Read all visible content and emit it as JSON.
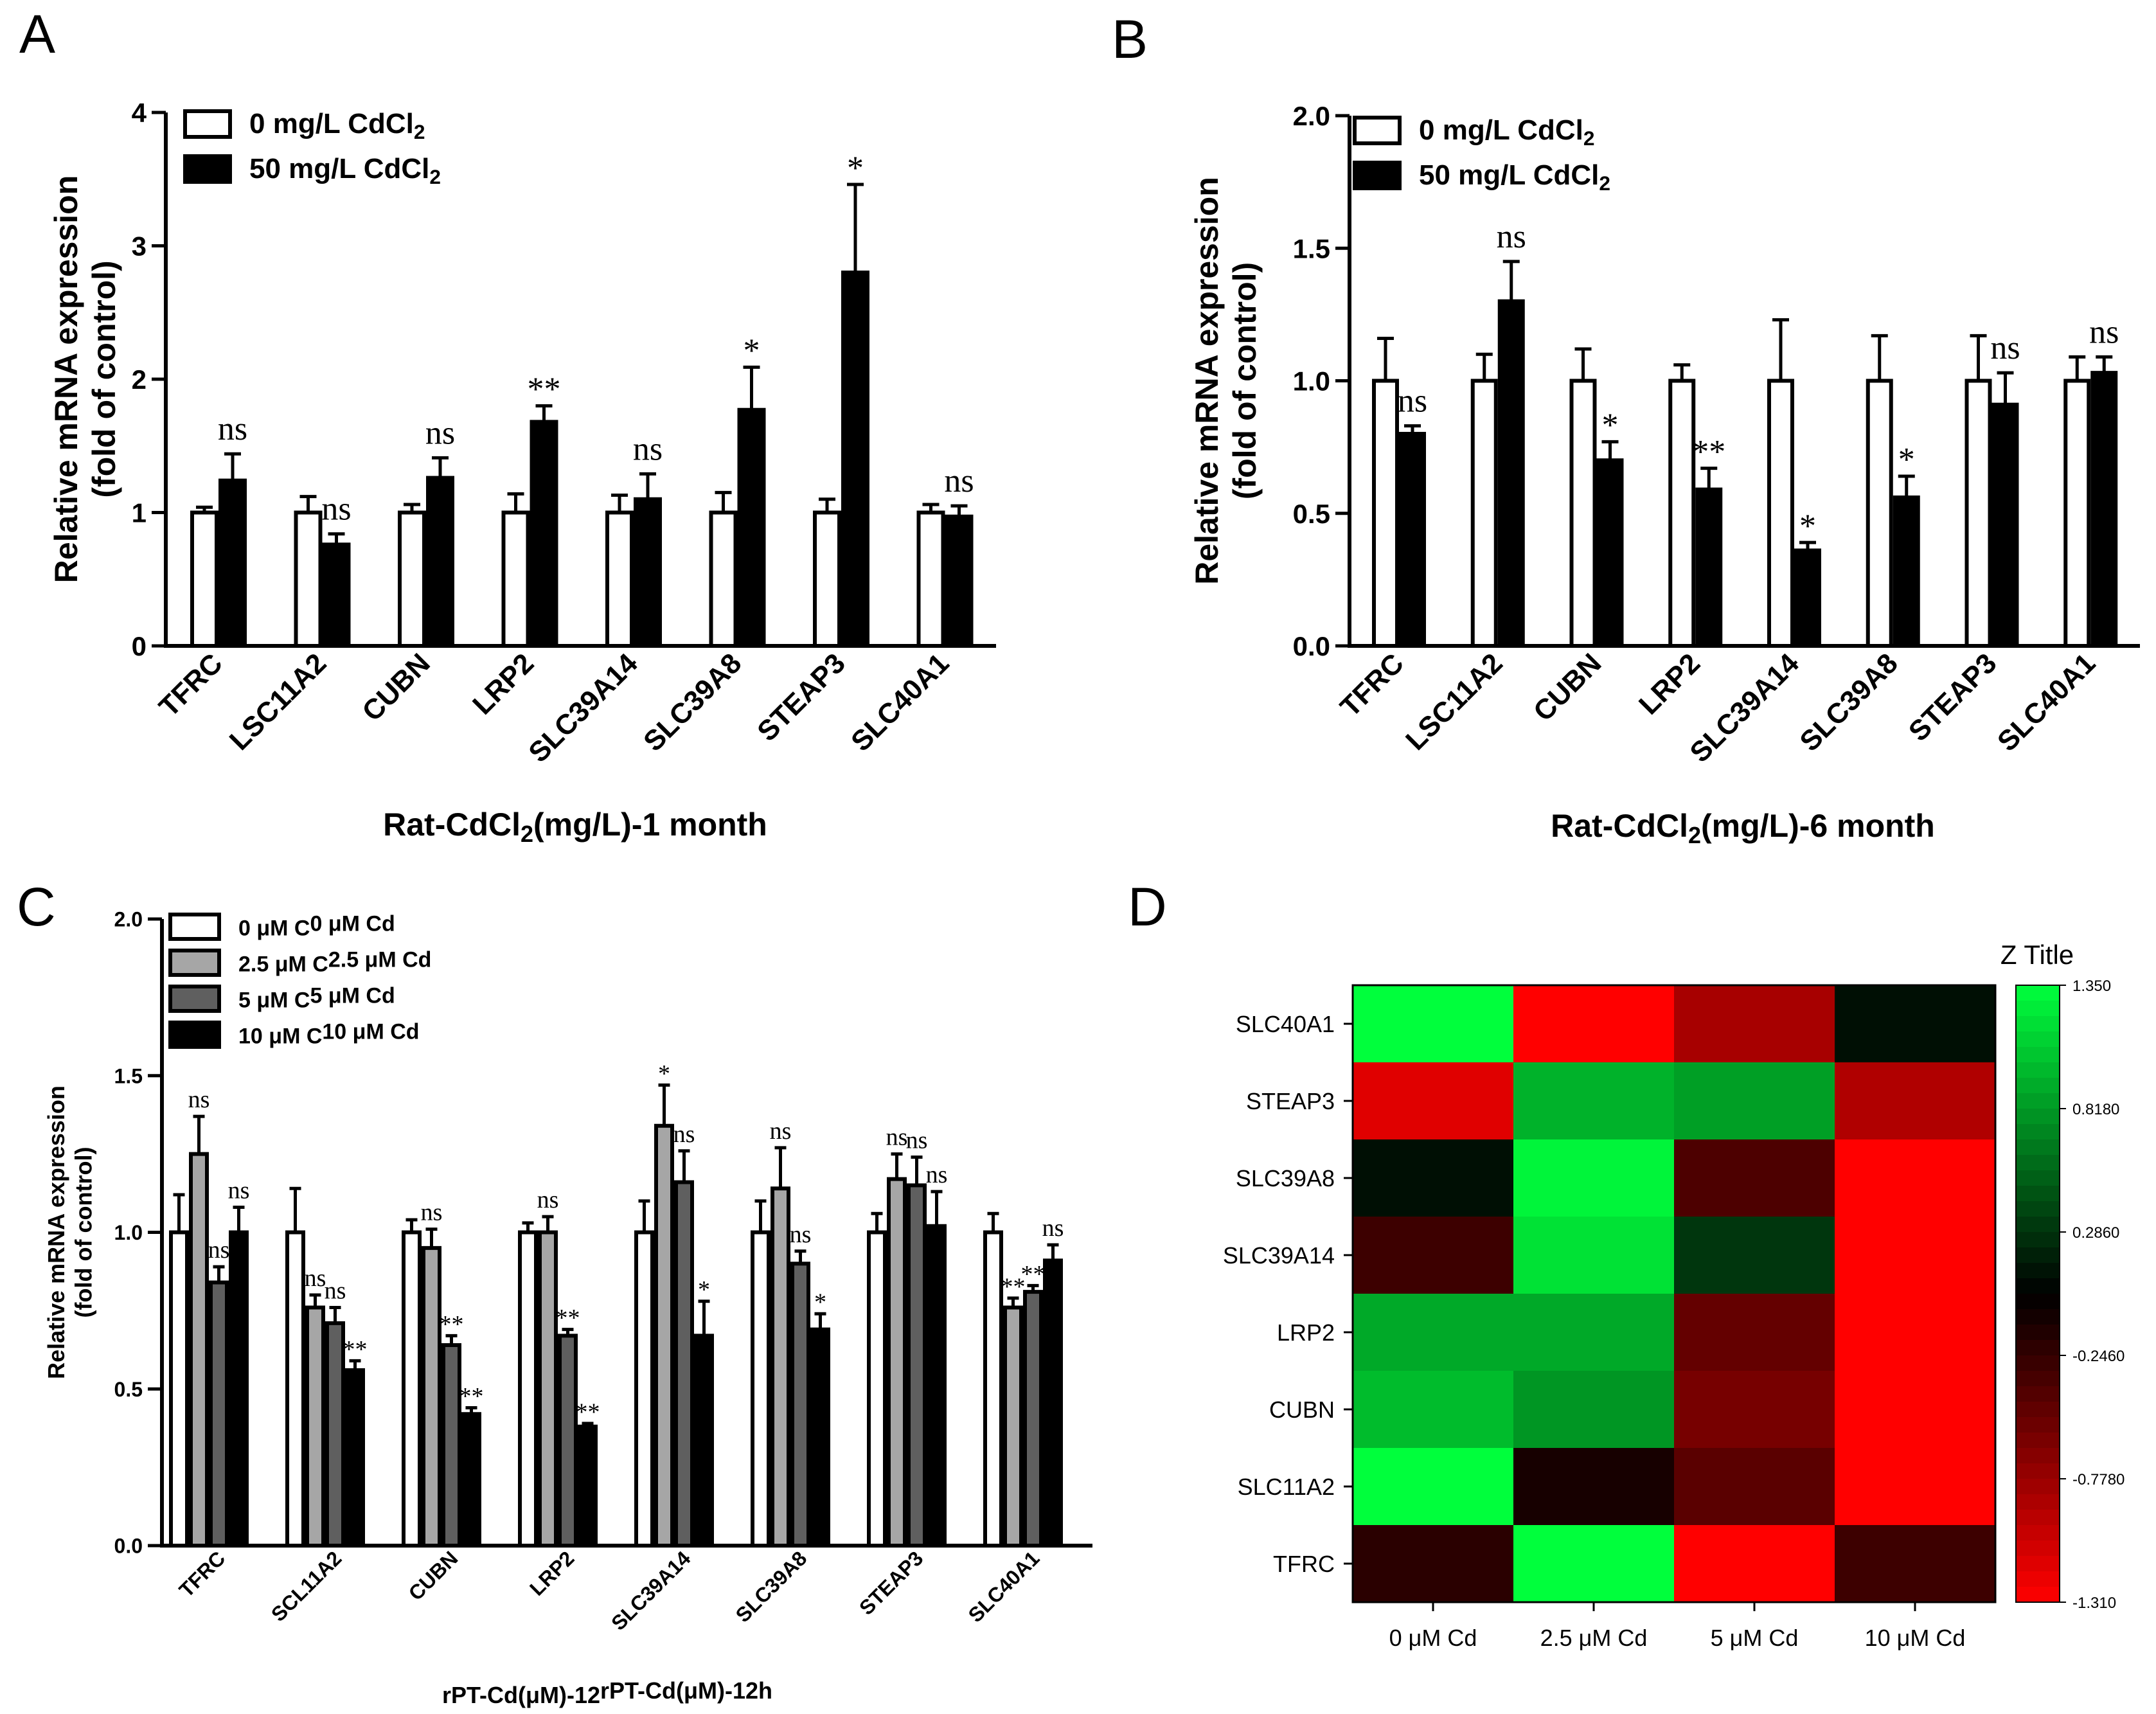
{
  "chart_data": [
    {
      "panel": "A",
      "type": "bar",
      "xlabel": "Rat-CdCl2(mg/L)-1 month",
      "ylabel": [
        "Relative mRNA expression",
        "(fold of control)"
      ],
      "ylim": [
        0,
        4
      ],
      "yticks": [
        "0",
        "1",
        "2",
        "3",
        "4"
      ],
      "categories": [
        "TFRC",
        "LSC11A2",
        "CUBN",
        "LRP2",
        "SLC39A14",
        "SLC39A8",
        "STEAP3",
        "SLC40A1"
      ],
      "series": [
        {
          "name": "0 mg/L CdCl2",
          "color": "#ffffff",
          "values": [
            1.0,
            1.0,
            1.0,
            1.0,
            1.0,
            1.0,
            1.0,
            1.0
          ],
          "errors": [
            0.04,
            0.12,
            0.06,
            0.14,
            0.13,
            0.15,
            0.1,
            0.06
          ]
        },
        {
          "name": "50 mg/L CdCl2",
          "color": "#000000",
          "values": [
            1.24,
            0.76,
            1.26,
            1.68,
            1.1,
            1.77,
            2.8,
            0.97
          ],
          "errors": [
            0.2,
            0.08,
            0.15,
            0.12,
            0.19,
            0.32,
            0.66,
            0.08
          ]
        }
      ],
      "annotations": [
        "ns",
        "ns",
        "ns",
        "**",
        "ns",
        "*",
        "*",
        "ns"
      ],
      "legend": "top-left"
    },
    {
      "panel": "B",
      "type": "bar",
      "xlabel": "Rat-CdCl2(mg/L)-6 month",
      "ylabel": [
        "Relative mRNA expression",
        "(fold of control)"
      ],
      "ylim": [
        0,
        2
      ],
      "yticks": [
        "0.0",
        "0.5",
        "1.0",
        "1.5",
        "2.0"
      ],
      "categories": [
        "TFRC",
        "LSC11A2",
        "CUBN",
        "LRP2",
        "SLC39A14",
        "SLC39A8",
        "STEAP3",
        "SLC40A1"
      ],
      "series": [
        {
          "name": "0 mg/L CdCl2",
          "color": "#ffffff",
          "values": [
            1.0,
            1.0,
            1.0,
            1.0,
            1.0,
            1.0,
            1.0,
            1.0
          ],
          "errors": [
            0.16,
            0.1,
            0.12,
            0.06,
            0.23,
            0.17,
            0.17,
            0.09
          ]
        },
        {
          "name": "50 mg/L CdCl2",
          "color": "#000000",
          "values": [
            0.8,
            1.3,
            0.7,
            0.59,
            0.36,
            0.56,
            0.91,
            1.03
          ],
          "errors": [
            0.03,
            0.15,
            0.07,
            0.08,
            0.03,
            0.08,
            0.12,
            0.06
          ]
        }
      ],
      "annotations": [
        "ns",
        "ns",
        "*",
        "**",
        "*",
        "*",
        "ns",
        "ns"
      ],
      "legend": "top-left"
    },
    {
      "panel": "C",
      "type": "bar",
      "xlabel": "rPT-Cd(μM)-12h",
      "ylabel": [
        "Relative mRNA expression",
        "(fold of control)"
      ],
      "ylim": [
        0,
        2
      ],
      "yticks": [
        "0.0",
        "0.5",
        "1.0",
        "1.5",
        "2.0"
      ],
      "categories": [
        "TFRC",
        "SCL11A2",
        "CUBN",
        "LRP2",
        "SLC39A14",
        "SLC39A8",
        "STEAP3",
        "SLC40A1"
      ],
      "series": [
        {
          "name": "0 μM Cd",
          "color": "#ffffff",
          "values": [
            1.0,
            1.0,
            1.0,
            1.0,
            1.0,
            1.0,
            1.0,
            1.0
          ],
          "errors": [
            0.12,
            0.14,
            0.04,
            0.03,
            0.1,
            0.1,
            0.06,
            0.06
          ],
          "annotations": [
            "",
            "",
            "",
            "",
            "",
            "",
            "",
            ""
          ]
        },
        {
          "name": "2.5 μM Cd",
          "color": "#a6a6a6",
          "values": [
            1.25,
            0.76,
            0.95,
            1.0,
            1.34,
            1.14,
            1.17,
            0.76
          ],
          "errors": [
            0.12,
            0.04,
            0.06,
            0.05,
            0.13,
            0.13,
            0.08,
            0.03
          ],
          "annotations": [
            "ns",
            "ns",
            "ns",
            "ns",
            "*",
            "ns",
            "ns",
            "**"
          ]
        },
        {
          "name": "5 μM Cd",
          "color": "#5f5f5f",
          "values": [
            0.84,
            0.71,
            0.64,
            0.67,
            1.16,
            0.9,
            1.15,
            0.81
          ],
          "errors": [
            0.05,
            0.05,
            0.03,
            0.02,
            0.1,
            0.04,
            0.09,
            0.02
          ],
          "annotations": [
            "ns",
            "ns",
            "**",
            "**",
            "ns",
            "ns",
            "ns",
            "**"
          ]
        },
        {
          "name": "10 μM Cd",
          "color": "#000000",
          "values": [
            1.0,
            0.56,
            0.42,
            0.38,
            0.67,
            0.69,
            1.02,
            0.91
          ],
          "errors": [
            0.08,
            0.03,
            0.02,
            0.01,
            0.11,
            0.05,
            0.11,
            0.05
          ],
          "annotations": [
            "ns",
            "**",
            "**",
            "**",
            "*",
            "*",
            "ns",
            "ns"
          ]
        }
      ],
      "legend": "top-left"
    },
    {
      "panel": "D",
      "type": "heatmap",
      "z_title": "Z Title",
      "columns": [
        "0 μM Cd",
        "2.5 μM Cd",
        "5 μM Cd",
        "10 μM Cd"
      ],
      "rows": [
        "SLC40A1",
        "STEAP3",
        "SLC39A8",
        "SLC39A14",
        "LRP2",
        "CUBN",
        "SLC11A2",
        "TFRC"
      ],
      "values": [
        [
          1.35,
          -1.31,
          -0.85,
          0.1
        ],
        [
          -1.15,
          0.95,
          0.85,
          -0.9
        ],
        [
          0.1,
          1.3,
          -0.38,
          -1.31
        ],
        [
          -0.3,
          1.2,
          0.3,
          -1.31
        ],
        [
          0.9,
          0.9,
          -0.5,
          -1.31
        ],
        [
          1.0,
          0.8,
          -0.6,
          -1.31
        ],
        [
          1.35,
          -0.1,
          -0.45,
          -1.31
        ],
        [
          -0.2,
          1.35,
          -1.31,
          -0.3
        ]
      ],
      "zlim": [
        -1.31,
        1.35
      ],
      "colorbar_ticks": [
        "1.350",
        "0.8180",
        "0.2860",
        "-0.2460",
        "-0.7780",
        "-1.310"
      ],
      "colors": {
        "low": "#ff0000",
        "mid": "#000000",
        "high": "#00ff3c"
      }
    }
  ],
  "panels": {
    "A": "A",
    "B": "B",
    "C": "C",
    "D": "D"
  }
}
